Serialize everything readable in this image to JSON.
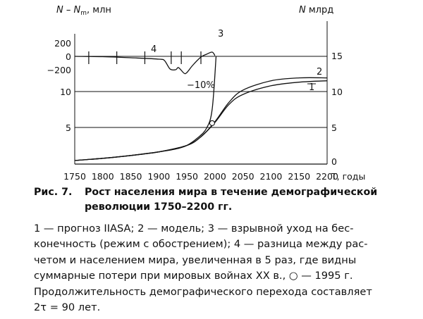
{
  "chart_data": {
    "type": "line",
    "x_range": [
      1750,
      2200
    ],
    "x_ticks": [
      1750,
      1800,
      1850,
      1900,
      1950,
      2000,
      2050,
      2100,
      2150,
      2200
    ],
    "xlabel": "T, годы",
    "left_top_axis_label": "N – N",
    "left_top_axis_subscript": "m",
    "left_top_axis_unit": ", млн",
    "left_top_ticks": [
      "200",
      "0",
      "−200"
    ],
    "left_bottom_ticks": [
      "5",
      "10"
    ],
    "right_axis_label_italic": "N",
    "right_axis_label_rest": " млрд",
    "right_ticks": [
      "15",
      "10",
      "5",
      "0"
    ],
    "right_range": [
      0,
      15
    ],
    "series": [
      {
        "name": "1",
        "x": [
          1750,
          1800,
          1850,
          1900,
          1950,
          1975,
          2000,
          2025,
          2050,
          2100,
          2150,
          2200
        ],
        "values": [
          0.5,
          0.8,
          1.2,
          1.7,
          2.6,
          3.8,
          5.8,
          8.3,
          9.7,
          10.9,
          11.4,
          11.6
        ]
      },
      {
        "name": "2",
        "x": [
          1750,
          1800,
          1850,
          1900,
          1950,
          1975,
          2000,
          2025,
          2050,
          2100,
          2150,
          2200
        ],
        "values": [
          0.5,
          0.8,
          1.2,
          1.7,
          2.6,
          3.8,
          5.9,
          8.6,
          10.3,
          11.6,
          12.0,
          12.0
        ]
      },
      {
        "name": "3",
        "x": [
          1750,
          1800,
          1850,
          1900,
          1930,
          1950,
          1970,
          1985,
          1995,
          2002
        ],
        "values": [
          0.5,
          0.8,
          1.2,
          1.7,
          2.1,
          2.6,
          3.7,
          5.0,
          7.6,
          15.0
        ]
      },
      {
        "name": "4",
        "x": [
          1750,
          1800,
          1850,
          1900,
          1910,
          1920,
          1930,
          1935,
          1945,
          1950,
          1960,
          1975,
          1985,
          1995,
          2000
        ],
        "values": [
          0,
          -5,
          -20,
          -40,
          -60,
          -180,
          -190,
          -160,
          -240,
          -230,
          -130,
          -10,
          30,
          60,
          10
        ]
      }
    ],
    "annotations": [
      {
        "text": "−10%",
        "x": 1950,
        "y": -300
      },
      {
        "text": "1995",
        "marker": "circle",
        "x": 1995,
        "y": 5.7
      }
    ]
  },
  "caption": {
    "number": "Рис. 7.",
    "title_line1": "Рост населения мира в течение демографической",
    "title_line2": "революции 1750–2200 гг."
  },
  "legend": {
    "line1": "1 — прогноз IIASA; 2 — модель; 3 — взрывной уход на бес-",
    "line2": "конечность (режим с обострением); 4 — разница между рас-",
    "line3": "четом и населением мира, увеличенная в 5 раз, где видны",
    "line4": "суммарные потери при мировых войнах XX в., ○ — 1995 г.",
    "line5": "Продолжительность демографического перехода составляет",
    "line6": "2τ = 90 лет."
  }
}
